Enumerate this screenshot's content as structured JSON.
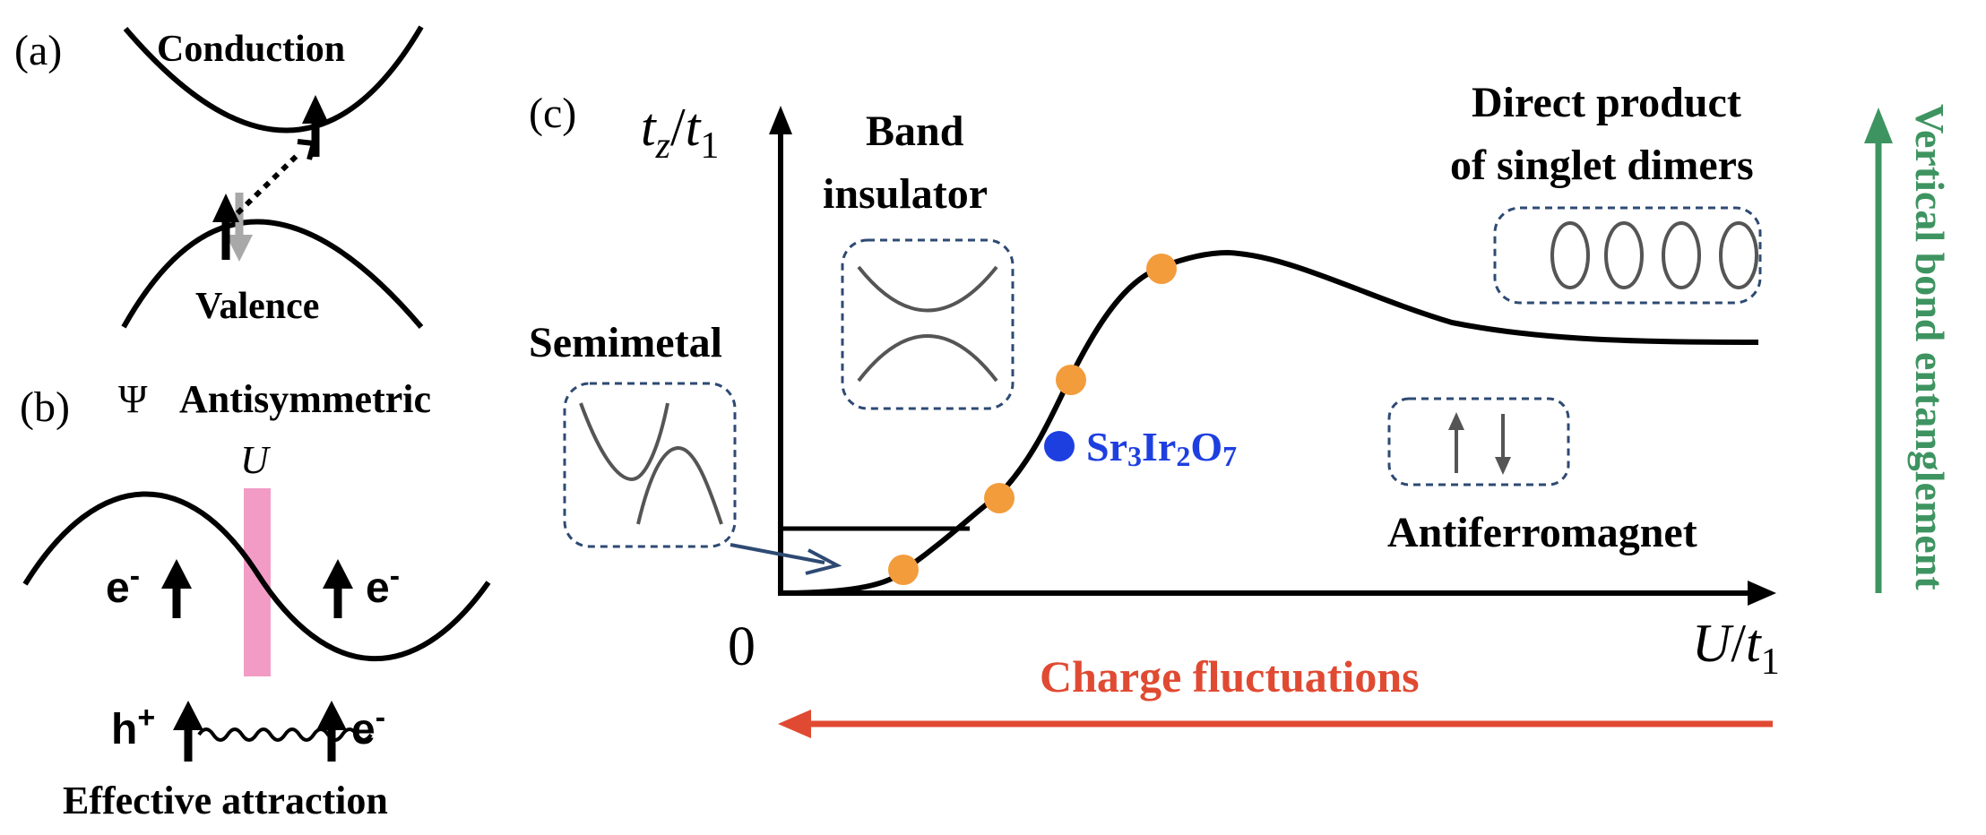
{
  "panel_a": {
    "label": "(a)",
    "conduction": "Conduction",
    "valence": "Valence"
  },
  "panel_b": {
    "label": "(b)",
    "psi": "Ψ",
    "antisymmetric": "Antisymmetric",
    "u": "U",
    "electron": "e",
    "hole": "h",
    "minus": "-",
    "plus": "+",
    "effective_attraction": "Effective attraction"
  },
  "panel_c": {
    "label": "(c)",
    "yaxis": {
      "t": "t",
      "z": "z",
      "slash": "/",
      "t1": "t",
      "sub1": "1"
    },
    "xaxis": {
      "u": "U",
      "slash": "/",
      "t1": "t",
      "sub1": "1"
    },
    "origin": "0",
    "band_insulator": [
      "Band",
      "insulator"
    ],
    "direct_product": [
      "Direct product",
      "of singlet dimers"
    ],
    "semimetal": "Semimetal",
    "antiferromagnet": "Antiferromagnet",
    "material": {
      "parts": [
        "Sr",
        "3",
        "Ir",
        "2",
        "O",
        "7"
      ]
    },
    "charge_fluctuations": "Charge fluctuations",
    "vertical_bond": "Vertical bond entanglement"
  },
  "colors": {
    "orange": "#F39C3C",
    "blue_point": "#1E3FE0",
    "red": "#E04A32",
    "green": "#3E9460",
    "pink": "#F29CC5",
    "dash_blue": "#2E4A73",
    "grey": "#A8A8A8"
  }
}
